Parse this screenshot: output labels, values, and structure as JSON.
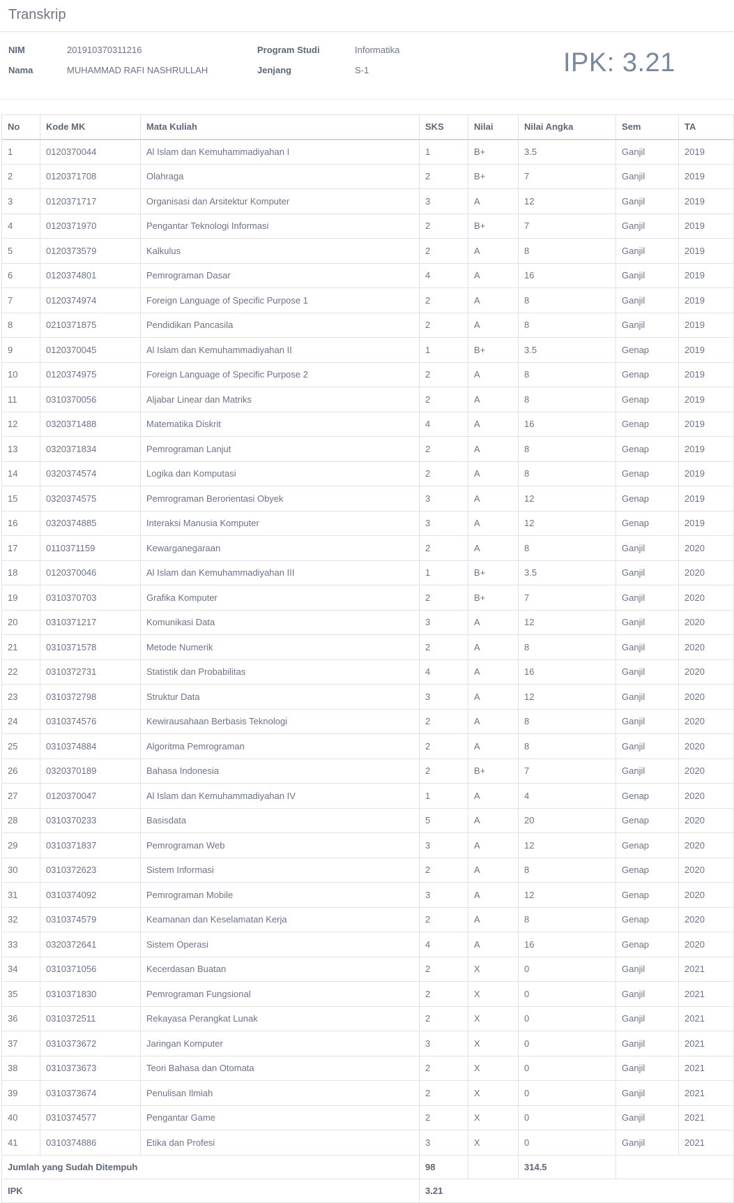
{
  "panel": {
    "title": "Transkrip"
  },
  "student": {
    "nim_label": "NIM",
    "nim": "201910370311216",
    "nama_label": "Nama",
    "nama": "MUHAMMAD RAFI NASHRULLAH",
    "prodi_label": "Program Studi",
    "prodi": "Informatika",
    "jenjang_label": "Jenjang",
    "jenjang": "S-1",
    "ipk_display": "IPK: 3.21"
  },
  "table": {
    "headers": [
      "No",
      "Kode MK",
      "Mata Kuliah",
      "SKS",
      "Nilai",
      "Nilai Angka",
      "Sem",
      "TA"
    ],
    "rows": [
      [
        "1",
        "0120370044",
        "Al Islam dan Kemuhammadiyahan I",
        "1",
        "B+",
        "3.5",
        "Ganjil",
        "2019"
      ],
      [
        "2",
        "0120371708",
        "Olahraga",
        "2",
        "B+",
        "7",
        "Ganjil",
        "2019"
      ],
      [
        "3",
        "0120371717",
        "Organisasi dan Arsitektur Komputer",
        "3",
        "A",
        "12",
        "Ganjil",
        "2019"
      ],
      [
        "4",
        "0120371970",
        "Pengantar Teknologi Informasi",
        "2",
        "B+",
        "7",
        "Ganjil",
        "2019"
      ],
      [
        "5",
        "0120373579",
        "Kalkulus",
        "2",
        "A",
        "8",
        "Ganjil",
        "2019"
      ],
      [
        "6",
        "0120374801",
        "Pemrograman Dasar",
        "4",
        "A",
        "16",
        "Ganjil",
        "2019"
      ],
      [
        "7",
        "0120374974",
        "Foreign Language of Specific Purpose 1",
        "2",
        "A",
        "8",
        "Ganjil",
        "2019"
      ],
      [
        "8",
        "0210371875",
        "Pendidikan Pancasila",
        "2",
        "A",
        "8",
        "Ganjil",
        "2019"
      ],
      [
        "9",
        "0120370045",
        "Al Islam dan Kemuhammadiyahan II",
        "1",
        "B+",
        "3.5",
        "Genap",
        "2019"
      ],
      [
        "10",
        "0120374975",
        "Foreign Language of Specific Purpose 2",
        "2",
        "A",
        "8",
        "Genap",
        "2019"
      ],
      [
        "11",
        "0310370056",
        "Aljabar Linear dan Matriks",
        "2",
        "A",
        "8",
        "Genap",
        "2019"
      ],
      [
        "12",
        "0320371488",
        "Matematika Diskrit",
        "4",
        "A",
        "16",
        "Genap",
        "2019"
      ],
      [
        "13",
        "0320371834",
        "Pemrograman Lanjut",
        "2",
        "A",
        "8",
        "Genap",
        "2019"
      ],
      [
        "14",
        "0320374574",
        "Logika dan Komputasi",
        "2",
        "A",
        "8",
        "Genap",
        "2019"
      ],
      [
        "15",
        "0320374575",
        "Pemrograman Berorientasi Obyek",
        "3",
        "A",
        "12",
        "Genap",
        "2019"
      ],
      [
        "16",
        "0320374885",
        "Interaksi Manusia Komputer",
        "3",
        "A",
        "12",
        "Genap",
        "2019"
      ],
      [
        "17",
        "0110371159",
        "Kewarganegaraan",
        "2",
        "A",
        "8",
        "Ganjil",
        "2020"
      ],
      [
        "18",
        "0120370046",
        "Al Islam dan Kemuhammadiyahan III",
        "1",
        "B+",
        "3.5",
        "Ganjil",
        "2020"
      ],
      [
        "19",
        "0310370703",
        "Grafika Komputer",
        "2",
        "B+",
        "7",
        "Ganjil",
        "2020"
      ],
      [
        "20",
        "0310371217",
        "Komunikasi Data",
        "3",
        "A",
        "12",
        "Ganjil",
        "2020"
      ],
      [
        "21",
        "0310371578",
        "Metode Numerik",
        "2",
        "A",
        "8",
        "Ganjil",
        "2020"
      ],
      [
        "22",
        "0310372731",
        "Statistik dan Probabilitas",
        "4",
        "A",
        "16",
        "Ganjil",
        "2020"
      ],
      [
        "23",
        "0310372798",
        "Struktur Data",
        "3",
        "A",
        "12",
        "Ganjil",
        "2020"
      ],
      [
        "24",
        "0310374576",
        "Kewirausahaan Berbasis Teknologi",
        "2",
        "A",
        "8",
        "Ganjil",
        "2020"
      ],
      [
        "25",
        "0310374884",
        "Algoritma Pemrograman",
        "2",
        "A",
        "8",
        "Ganjil",
        "2020"
      ],
      [
        "26",
        "0320370189",
        "Bahasa Indonesia",
        "2",
        "B+",
        "7",
        "Ganjil",
        "2020"
      ],
      [
        "27",
        "0120370047",
        "Al Islam dan Kemuhammadiyahan IV",
        "1",
        "A",
        "4",
        "Genap",
        "2020"
      ],
      [
        "28",
        "0310370233",
        "Basisdata",
        "5",
        "A",
        "20",
        "Genap",
        "2020"
      ],
      [
        "29",
        "0310371837",
        "Pemrograman Web",
        "3",
        "A",
        "12",
        "Genap",
        "2020"
      ],
      [
        "30",
        "0310372623",
        "Sistem Informasi",
        "2",
        "A",
        "8",
        "Genap",
        "2020"
      ],
      [
        "31",
        "0310374092",
        "Pemrograman Mobile",
        "3",
        "A",
        "12",
        "Genap",
        "2020"
      ],
      [
        "32",
        "0310374579",
        "Keamanan dan Keselamatan Kerja",
        "2",
        "A",
        "8",
        "Genap",
        "2020"
      ],
      [
        "33",
        "0320372641",
        "Sistem Operasi",
        "4",
        "A",
        "16",
        "Genap",
        "2020"
      ],
      [
        "34",
        "0310371056",
        "Kecerdasan Buatan",
        "2",
        "X",
        "0",
        "Ganjil",
        "2021"
      ],
      [
        "35",
        "0310371830",
        "Pemrograman Fungsional",
        "2",
        "X",
        "0",
        "Ganjil",
        "2021"
      ],
      [
        "36",
        "0310372511",
        "Rekayasa Perangkat Lunak",
        "2",
        "X",
        "0",
        "Ganjil",
        "2021"
      ],
      [
        "37",
        "0310373672",
        "Jaringan Komputer",
        "3",
        "X",
        "0",
        "Ganjil",
        "2021"
      ],
      [
        "38",
        "0310373673",
        "Teori Bahasa dan Otomata",
        "2",
        "X",
        "0",
        "Ganjil",
        "2021"
      ],
      [
        "39",
        "0310373674",
        "Penulisan Ilmiah",
        "2",
        "X",
        "0",
        "Ganjil",
        "2021"
      ],
      [
        "40",
        "0310374577",
        "Pengantar Game",
        "2",
        "X",
        "0",
        "Ganjil",
        "2021"
      ],
      [
        "41",
        "0310374886",
        "Etika dan Profesi",
        "3",
        "X",
        "0",
        "Ganjil",
        "2021"
      ]
    ],
    "footer": {
      "total_label": "Jumlah yang Sudah Ditempuh",
      "total_sks": "98",
      "total_angka": "314.5",
      "ipk_label": "IPK",
      "ipk_value": "3.21"
    }
  }
}
